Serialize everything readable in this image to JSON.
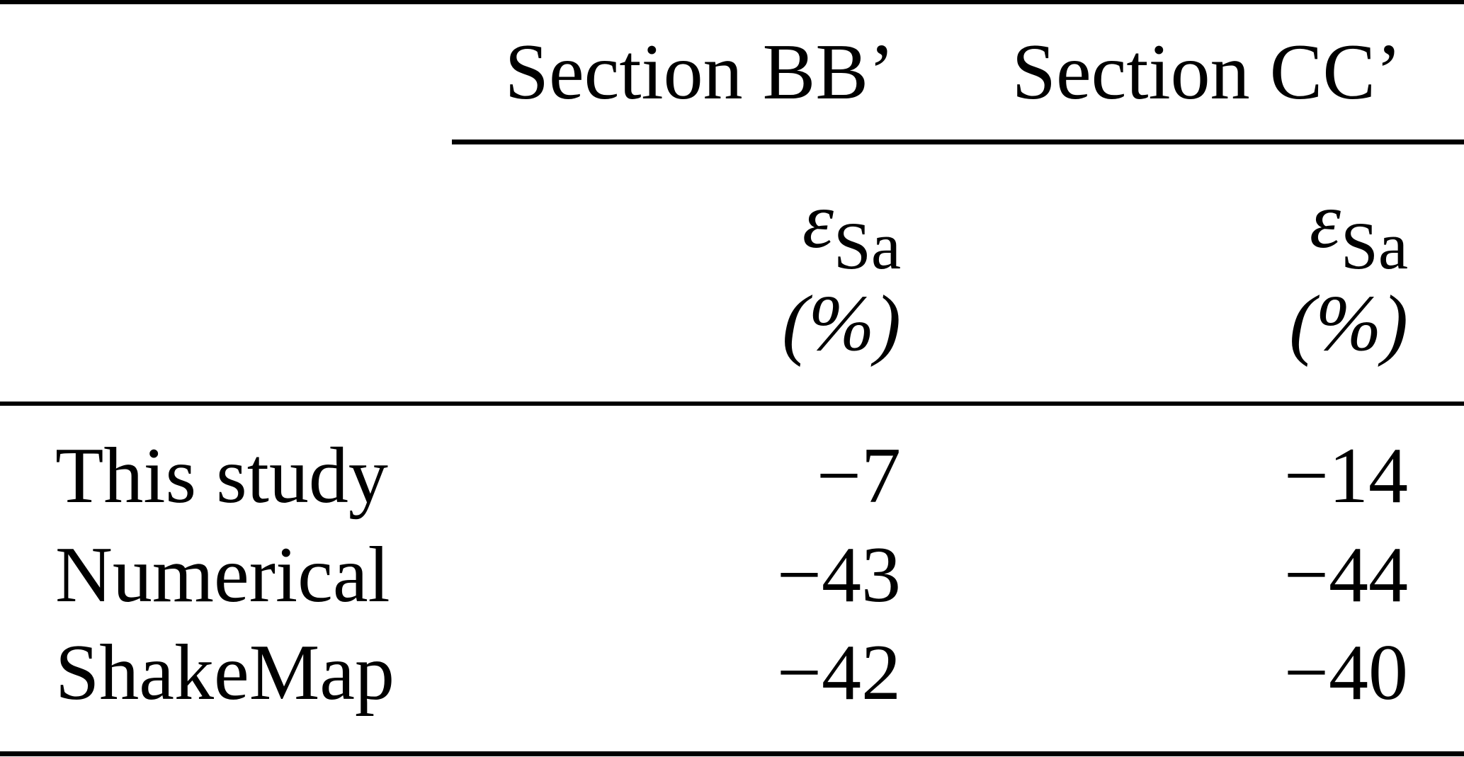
{
  "page": {
    "background_color": "#ffffff",
    "text_color": "#000000",
    "rule_color": "#000000"
  },
  "table": {
    "column_headers": [
      {
        "label": "Section BB’"
      },
      {
        "label": "Section CC’"
      }
    ],
    "subheaders": [
      {
        "symbol": "ε",
        "subscript": "Sa",
        "unit": "(%)"
      },
      {
        "symbol": "ε",
        "subscript": "Sa",
        "unit": "(%)"
      }
    ],
    "rows": [
      {
        "label": "This study",
        "values": [
          "−7",
          "−14"
        ]
      },
      {
        "label": "Numerical",
        "values": [
          "−43",
          "−44"
        ]
      },
      {
        "label": "ShakeMap",
        "values": [
          "−42",
          "−40"
        ]
      }
    ]
  }
}
